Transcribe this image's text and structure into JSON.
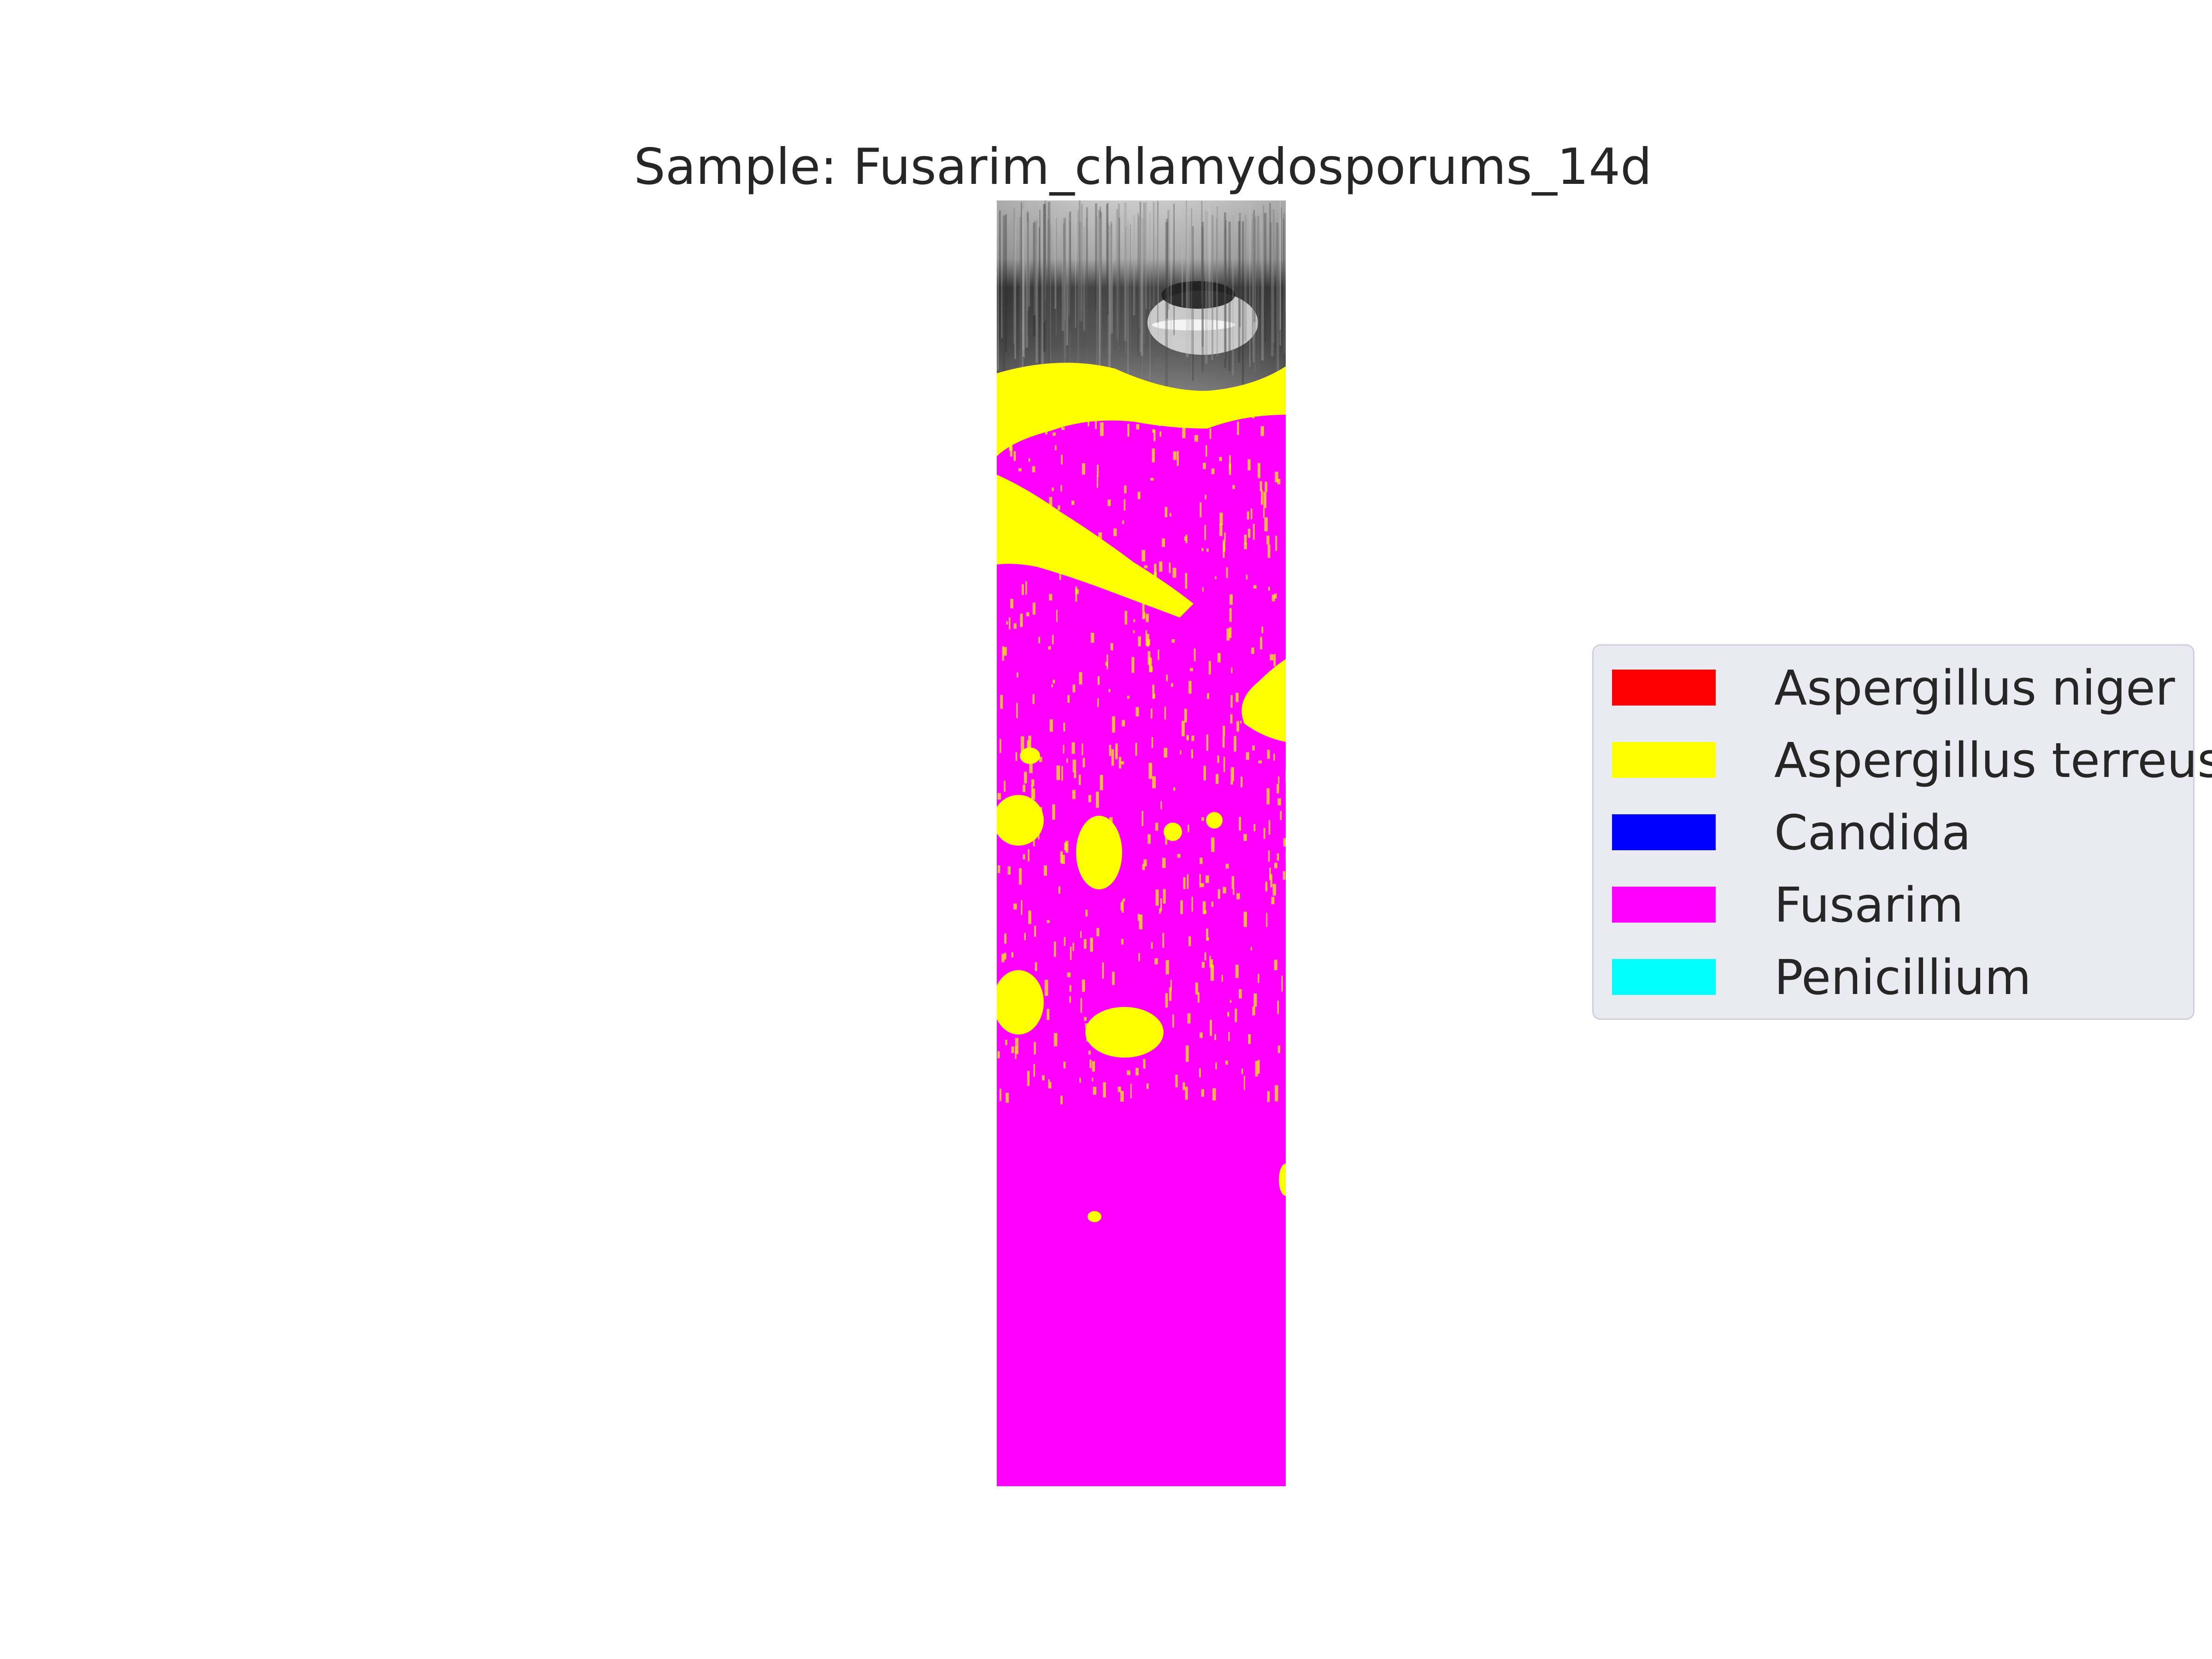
{
  "chart_data": {
    "type": "heatmap",
    "title": "Sample: Fusarim_chlamydosporums_14d",
    "xlabel": "",
    "ylabel": "",
    "grid": false,
    "axes_visible": false,
    "legend_placement": "right",
    "classes": [
      {
        "name": "Aspergillus niger",
        "color": "#ff0000",
        "fraction": 0.0
      },
      {
        "name": "Aspergillus terreus",
        "color": "#ffff00",
        "fraction": 0.14
      },
      {
        "name": "Candida",
        "color": "#0000ff",
        "fraction": 0.0
      },
      {
        "name": "Fusarim",
        "color": "#ff00ff",
        "fraction": 0.86
      },
      {
        "name": "Penicillium",
        "color": "#00ffff",
        "fraction": 0.0
      }
    ],
    "background": "grayscale OCT-like image above segmented region"
  }
}
